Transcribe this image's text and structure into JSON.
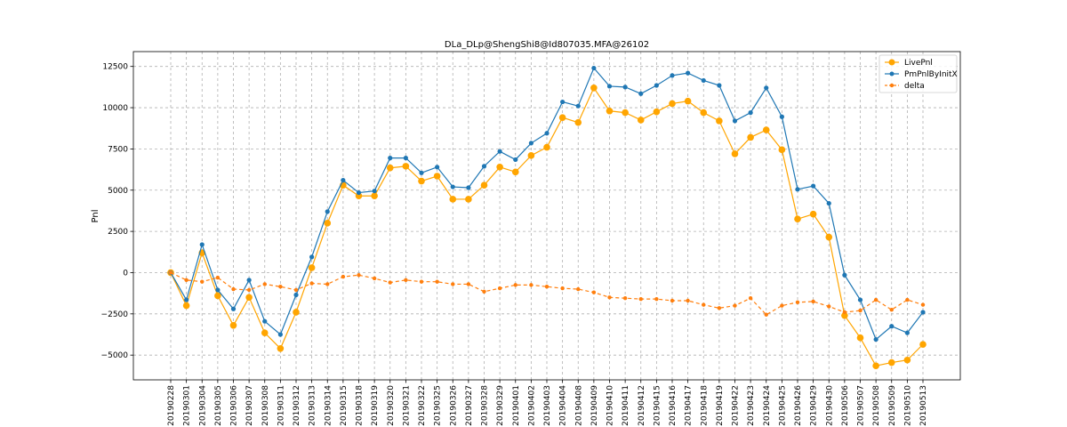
{
  "chart_data": {
    "type": "line",
    "title": "DLa_DLp@ShengShi8@Id807035.MFA@26102",
    "xlabel": "",
    "ylabel": "Pnl",
    "ylim": [
      -6500,
      13400
    ],
    "yticks": [
      -5000,
      -2500,
      0,
      2500,
      5000,
      7500,
      10000,
      12500
    ],
    "ytick_labels": [
      "−5000",
      "−2500",
      "0",
      "2500",
      "5000",
      "7500",
      "10000",
      "12500"
    ],
    "grid": true,
    "legend_position": "top-right",
    "categories": [
      "20190228",
      "20190301",
      "20190304",
      "20190305",
      "20190306",
      "20190307",
      "20190308",
      "20190311",
      "20190312",
      "20190313",
      "20190314",
      "20190315",
      "20190318",
      "20190319",
      "20190320",
      "20190321",
      "20190322",
      "20190325",
      "20190326",
      "20190327",
      "20190328",
      "20190329",
      "20190401",
      "20190402",
      "20190403",
      "20190404",
      "20190408",
      "20190409",
      "20190410",
      "20190411",
      "20190412",
      "20190415",
      "20190416",
      "20190417",
      "20190418",
      "20190419",
      "20190422",
      "20190423",
      "20190424",
      "20190425",
      "20190426",
      "20190429",
      "20190430",
      "20190506",
      "20190507",
      "20190508",
      "20190509",
      "20190510",
      "20190513"
    ],
    "series": [
      {
        "name": "LivePnl",
        "color": "#ffa500",
        "style": "solid",
        "marker": "large-circle",
        "values": [
          0,
          -2000,
          1200,
          -1400,
          -3200,
          -1500,
          -3650,
          -4600,
          -2400,
          300,
          3000,
          5300,
          4650,
          4650,
          6350,
          6450,
          5550,
          5850,
          4450,
          4450,
          5300,
          6400,
          6100,
          7100,
          7600,
          9400,
          9100,
          11200,
          9800,
          9700,
          9250,
          9750,
          10250,
          10400,
          9700,
          9200,
          7200,
          8200,
          8650,
          7450,
          3250,
          3550,
          2150,
          -2600,
          -3950,
          -5650,
          -5450,
          -5300,
          -4350
        ]
      },
      {
        "name": "PmPnlByInitX",
        "color": "#1f77b4",
        "style": "solid",
        "marker": "small-circle",
        "values": [
          0,
          -1650,
          1700,
          -1050,
          -2200,
          -450,
          -2950,
          -3750,
          -1350,
          950,
          3700,
          5600,
          4850,
          4950,
          6950,
          6950,
          6050,
          6400,
          5200,
          5150,
          6450,
          7350,
          6850,
          7850,
          8450,
          10350,
          10100,
          12400,
          11300,
          11250,
          10850,
          11350,
          11950,
          12100,
          11650,
          11350,
          9200,
          9700,
          11200,
          9450,
          5050,
          5250,
          4200,
          -150,
          -1650,
          -4050,
          -3250,
          -3650,
          -2400
        ]
      },
      {
        "name": "delta",
        "color": "#ff7f0e",
        "style": "dashed",
        "marker": "small-circle",
        "values": [
          0,
          -450,
          -550,
          -300,
          -1000,
          -1050,
          -700,
          -850,
          -1050,
          -650,
          -700,
          -250,
          -150,
          -350,
          -600,
          -450,
          -550,
          -550,
          -700,
          -700,
          -1150,
          -950,
          -750,
          -750,
          -850,
          -950,
          -1000,
          -1200,
          -1500,
          -1550,
          -1600,
          -1600,
          -1700,
          -1700,
          -1950,
          -2150,
          -2000,
          -1550,
          -2550,
          -2000,
          -1800,
          -1750,
          -2050,
          -2400,
          -2300,
          -1650,
          -2250,
          -1650,
          -1950
        ]
      }
    ]
  }
}
